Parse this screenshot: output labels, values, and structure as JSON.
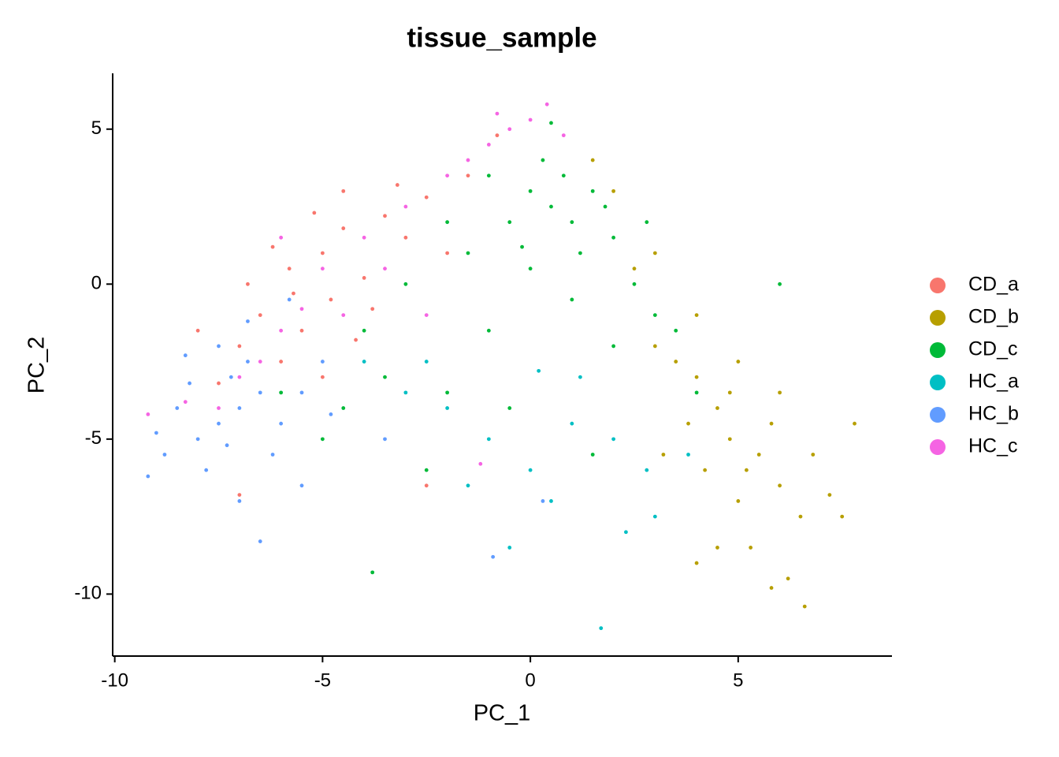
{
  "chart_data": {
    "type": "scatter",
    "title": "tissue_sample",
    "x_label": "PC_1",
    "y_label": "PC_2",
    "xlim": [
      -10.05,
      8.7
    ],
    "ylim": [
      -12,
      6.8
    ],
    "xticks": [
      -10,
      -5,
      0,
      5
    ],
    "yticks": [
      -10,
      -5,
      0,
      5
    ],
    "grid": false,
    "legend": "right",
    "series": [
      {
        "name": "CD_a",
        "color": "#F8766D",
        "x": [
          -6.5,
          -5.8,
          -5,
          -4.5,
          -4,
          -3.5,
          -5.5,
          -6,
          -7,
          -4.8,
          -3,
          -2.5,
          -5.2,
          -6.2,
          -4.2,
          -7.5,
          -3.8,
          -2,
          -1.5,
          -0.8,
          -5,
          -6.8,
          -4.5,
          -3.2,
          -7,
          -2.5,
          -8,
          -5.7
        ],
        "values": [
          -1,
          0.5,
          1,
          1.8,
          0.2,
          2.2,
          -1.5,
          -2.5,
          -2,
          -0.5,
          1.5,
          2.8,
          2.3,
          1.2,
          -1.8,
          -3.2,
          -0.8,
          1,
          3.5,
          4.8,
          -3,
          0,
          3,
          3.2,
          -6.8,
          -6.5,
          -1.5,
          -0.3
        ]
      },
      {
        "name": "CD_b",
        "color": "#B79F00",
        "x": [
          4.8,
          5.2,
          4.5,
          5.5,
          6,
          4,
          3.5,
          5,
          6.5,
          5.8,
          4.2,
          3.8,
          6.8,
          7.2,
          5.3,
          4.5,
          6.2,
          6.6,
          3,
          2.5,
          2,
          1.5,
          3,
          4,
          5,
          7.5,
          7.8,
          4,
          5.8,
          3.2,
          6,
          4.8
        ],
        "values": [
          -5,
          -6,
          -4,
          -5.5,
          -6.5,
          -3,
          -2.5,
          -7,
          -7.5,
          -4.5,
          -6,
          -4.5,
          -5.5,
          -6.8,
          -8.5,
          -8.5,
          -9.5,
          -10.4,
          -2,
          0.5,
          3,
          4,
          1,
          -1,
          -2.5,
          -7.5,
          -4.5,
          -9,
          -9.8,
          -5.5,
          -3.5,
          -3.5
        ]
      },
      {
        "name": "CD_c",
        "color": "#00BA38",
        "x": [
          0,
          0.5,
          1,
          1.5,
          -0.5,
          0.3,
          1.2,
          2,
          2.5,
          3,
          -1,
          -1.5,
          0,
          1,
          -2,
          -3,
          -4,
          -4.5,
          -5,
          -3.5,
          -2,
          -1,
          2,
          3.5,
          4,
          0.8,
          1.8,
          -0.2,
          2.8,
          -2.5,
          -3.8,
          1.5,
          -0.5,
          6,
          0.5,
          -6
        ],
        "values": [
          3,
          2.5,
          2,
          3,
          2,
          4,
          1,
          1.5,
          0,
          -1,
          3.5,
          1,
          0.5,
          -0.5,
          2,
          0,
          -1.5,
          -4,
          -5,
          -3,
          -3.5,
          -1.5,
          -2,
          -1.5,
          -3.5,
          3.5,
          2.5,
          1.2,
          2,
          -6,
          -9.3,
          -5.5,
          -4,
          0,
          5.2,
          -3.5
        ]
      },
      {
        "name": "HC_a",
        "color": "#00BFC4",
        "x": [
          -1,
          0,
          1,
          2,
          -2,
          0.5,
          1.7,
          -0.5,
          2.8,
          -3,
          1.2,
          3,
          -1.5,
          0.2,
          -4,
          2.3,
          -2.5,
          3.8
        ],
        "values": [
          -5,
          -6,
          -4.5,
          -5,
          -4,
          -7,
          -11.1,
          -8.5,
          -6,
          -3.5,
          -3,
          -7.5,
          -6.5,
          -2.8,
          -2.5,
          -8,
          -2.5,
          -5.5
        ]
      },
      {
        "name": "HC_b",
        "color": "#619CFF",
        "x": [
          -7,
          -7.5,
          -8,
          -6.5,
          -7.2,
          -8.5,
          -6,
          -7.8,
          -8.8,
          -9.2,
          -6.8,
          -5.5,
          -7.5,
          -6.2,
          -8.2,
          -6.5,
          -5.5,
          -4.8,
          -3.5,
          -7,
          -9,
          -8.3,
          -6.8,
          -5,
          -0.9,
          0.3,
          -5.8,
          -7.3
        ],
        "values": [
          -4,
          -4.5,
          -5,
          -3.5,
          -3,
          -4,
          -4.5,
          -6,
          -5.5,
          -6.2,
          -2.5,
          -3.5,
          -2,
          -5.5,
          -3.2,
          -8.3,
          -6.5,
          -4.2,
          -5,
          -7,
          -4.8,
          -2.3,
          -1.2,
          -2.5,
          -8.8,
          -7,
          -0.5,
          -5.2
        ]
      },
      {
        "name": "HC_c",
        "color": "#F564E3",
        "x": [
          -0.5,
          0,
          -1,
          0.4,
          -0.8,
          -6,
          -5,
          -7,
          -4,
          -3,
          -6.5,
          -5.5,
          -2,
          -7.5,
          -8.3,
          -9.2,
          -4.5,
          -3.5,
          -1.5,
          0.8,
          -6,
          -2.5,
          -1.2
        ],
        "values": [
          5,
          5.3,
          4.5,
          5.8,
          5.5,
          -1.5,
          0.5,
          -3,
          1.5,
          2.5,
          -2.5,
          -0.8,
          3.5,
          -4,
          -3.8,
          -4.2,
          -1,
          0.5,
          4,
          4.8,
          1.5,
          -1,
          -5.8
        ]
      }
    ]
  }
}
